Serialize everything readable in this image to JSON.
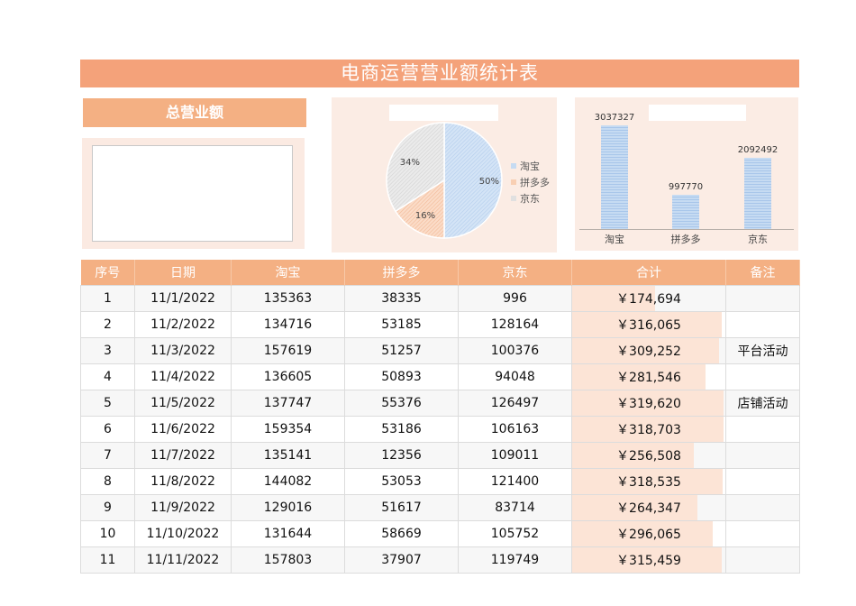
{
  "header": {
    "title": "电商运营营业额统计表"
  },
  "total_card": {
    "label": "总营业额",
    "value": ""
  },
  "colors": {
    "title_bg": "#f4a27a",
    "header_bg": "#f4b083",
    "panel_bg": "#fbece4",
    "databar": "#fce4d6",
    "taobao": "#c6dbf2",
    "pinduoduo": "#f8cfb3",
    "jingdong": "#e0e0e0",
    "note_red": "#c0392b"
  },
  "chart_data": [
    {
      "type": "pie",
      "title": "",
      "categories": [
        "淘宝",
        "拼多多",
        "京东"
      ],
      "values": [
        50,
        16,
        34
      ],
      "labels": [
        "50%",
        "16%",
        "34%"
      ],
      "legend_position": "right"
    },
    {
      "type": "bar",
      "title": "",
      "categories": [
        "淘宝",
        "拼多多",
        "京东"
      ],
      "values": [
        3037327,
        997770,
        2092492
      ],
      "labels": [
        "3037327",
        "997770",
        "2092492"
      ],
      "grid": false
    }
  ],
  "table": {
    "columns": [
      "序号",
      "日期",
      "淘宝",
      "拼多多",
      "京东",
      "合计",
      "备注"
    ],
    "rows": [
      [
        "1",
        "11/1/2022",
        "135363",
        "38335",
        "996",
        "￥174,694",
        ""
      ],
      [
        "2",
        "11/2/2022",
        "134716",
        "53185",
        "128164",
        "￥316,065",
        ""
      ],
      [
        "3",
        "11/3/2022",
        "157619",
        "51257",
        "100376",
        "￥309,252",
        "平台活动"
      ],
      [
        "4",
        "11/4/2022",
        "136605",
        "50893",
        "94048",
        "￥281,546",
        ""
      ],
      [
        "5",
        "11/5/2022",
        "137747",
        "55376",
        "126497",
        "￥319,620",
        "店铺活动"
      ],
      [
        "6",
        "11/6/2022",
        "159354",
        "53186",
        "106163",
        "￥318,703",
        ""
      ],
      [
        "7",
        "11/7/2022",
        "135141",
        "12356",
        "109011",
        "￥256,508",
        ""
      ],
      [
        "8",
        "11/8/2022",
        "144082",
        "53053",
        "121400",
        "￥318,535",
        ""
      ],
      [
        "9",
        "11/9/2022",
        "129016",
        "51617",
        "83714",
        "￥264,347",
        ""
      ],
      [
        "10",
        "11/10/2022",
        "131644",
        "58669",
        "105752",
        "￥296,065",
        ""
      ],
      [
        "11",
        "11/11/2022",
        "157803",
        "37907",
        "119749",
        "￥315,459",
        ""
      ]
    ],
    "totals_numeric": [
      174694,
      316065,
      309252,
      281546,
      319620,
      318703,
      256508,
      318535,
      264347,
      296065,
      315459
    ]
  }
}
